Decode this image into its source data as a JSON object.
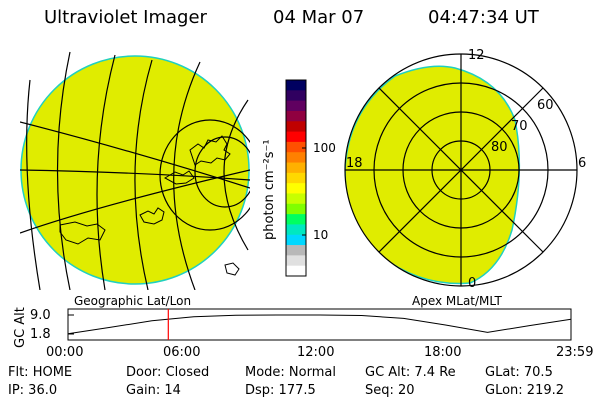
{
  "header": {
    "instrument": "Ultraviolet Imager",
    "date": "04 Mar 07",
    "time": "04:47:34 UT"
  },
  "colorbar": {
    "unit_label": "photon cm⁻²s⁻¹",
    "ticks": [
      {
        "label": "100",
        "value": 100
      },
      {
        "label": "10",
        "value": 10
      }
    ],
    "colors": [
      "#ffffff",
      "#e0e0e0",
      "#b8b8b8",
      "#00d8ff",
      "#00e8c0",
      "#00ff60",
      "#80ff00",
      "#c8ff00",
      "#ffff00",
      "#ffd800",
      "#ffb000",
      "#ff8000",
      "#ff5000",
      "#ff0000",
      "#c00000",
      "#900040",
      "#600060",
      "#300060",
      "#000060"
    ]
  },
  "maps": {
    "geo_caption": "Geographic Lat/Lon",
    "apex_caption": "Apex MLat/MLT",
    "fill_color": "#e0ec00",
    "polar_labels": {
      "mlt_top": "12",
      "mlt_left": "18",
      "mlt_right": "6",
      "mlt_bottom": "0",
      "lat_60": "60",
      "lat_70": "70",
      "lat_80": "80"
    }
  },
  "altitude_plot": {
    "ylabel": "GC Alt",
    "ytick_high": "9.0",
    "ytick_low": "1.8",
    "xticks": [
      "00:00",
      "06:00",
      "12:00",
      "18:00",
      "23:59"
    ],
    "marker_color": "#ff0000"
  },
  "chart_data": {
    "type": "line",
    "title": "",
    "xlabel": "",
    "ylabel": "GC Alt",
    "x": [
      "00:00",
      "02:00",
      "04:00",
      "06:00",
      "08:00",
      "10:00",
      "12:00",
      "14:00",
      "16:00",
      "18:00",
      "20:00",
      "22:00",
      "23:59"
    ],
    "series": [
      {
        "values": [
          1.9,
          4.3,
          6.8,
          8.3,
          8.9,
          9.0,
          9.0,
          8.8,
          7.7,
          5.2,
          2.4,
          5.0,
          7.4
        ]
      }
    ],
    "ylim": [
      1.8,
      9.0
    ],
    "marker_time": "04:47"
  },
  "status": {
    "flt": "Flt: HOME",
    "door": "Door: Closed",
    "mode": "Mode: Normal",
    "gc_alt": "GC Alt: 7.4 Re",
    "glat": "GLat:  70.5",
    "ip": "IP: 36.0",
    "gain": "Gain: 14",
    "dsp": "Dsp:   177.5",
    "seq": "Seq: 20",
    "glon": "GLon: 219.2"
  }
}
